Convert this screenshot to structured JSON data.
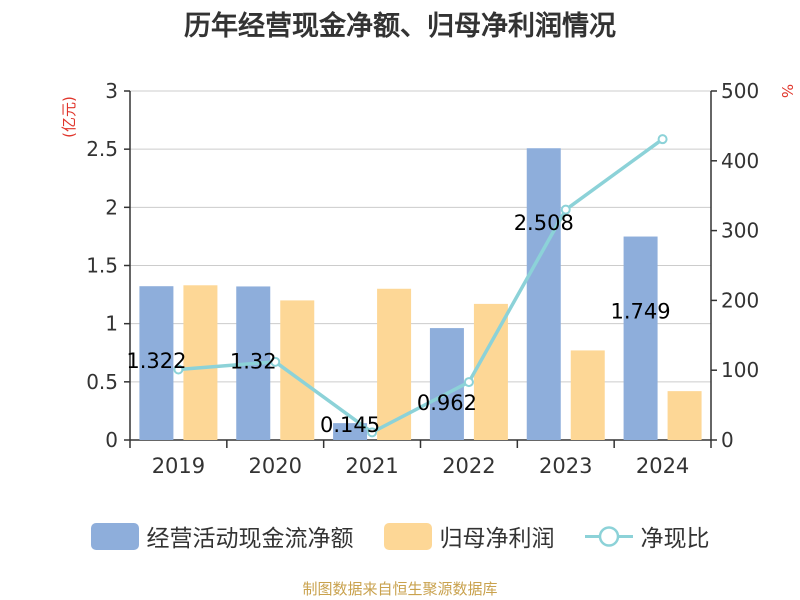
{
  "title": "历年经营现金净额、归母净利润情况",
  "source_note": "制图数据来自恒生聚源数据库",
  "colors": {
    "cash": "#8eaedb",
    "profit": "#fdd796",
    "ratio": "#8cd2d8",
    "axis_unit_left": "#e0352b",
    "axis_unit_right": "#e0352b"
  },
  "chart_data": {
    "type": "bar",
    "categories": [
      "2019",
      "2020",
      "2021",
      "2022",
      "2023",
      "2024"
    ],
    "y_left": {
      "label": "(亿元)",
      "min": 0,
      "max": 3,
      "ticks": [
        "0",
        "0.5",
        "1",
        "1.5",
        "2",
        "2.5",
        "3"
      ]
    },
    "y_right": {
      "label": "%",
      "min": 0,
      "max": 500,
      "ticks": [
        "0",
        "100",
        "200",
        "300",
        "400",
        "500"
      ]
    },
    "grid": true,
    "legend_position": "bottom",
    "series": [
      {
        "name": "经营活动现金流净额",
        "type": "bar",
        "axis": "left",
        "values": [
          1.322,
          1.32,
          0.145,
          0.962,
          2.508,
          1.749
        ],
        "labels": [
          "1.322",
          "1.32",
          "0.145",
          "0.962",
          "2.508",
          "1.749"
        ]
      },
      {
        "name": "归母净利润",
        "type": "bar",
        "axis": "left",
        "values": [
          1.33,
          1.2,
          1.3,
          1.17,
          0.77,
          0.42
        ]
      },
      {
        "name": "净现比",
        "type": "line",
        "axis": "right",
        "values": [
          101,
          112,
          11,
          83,
          330,
          431
        ]
      }
    ]
  }
}
